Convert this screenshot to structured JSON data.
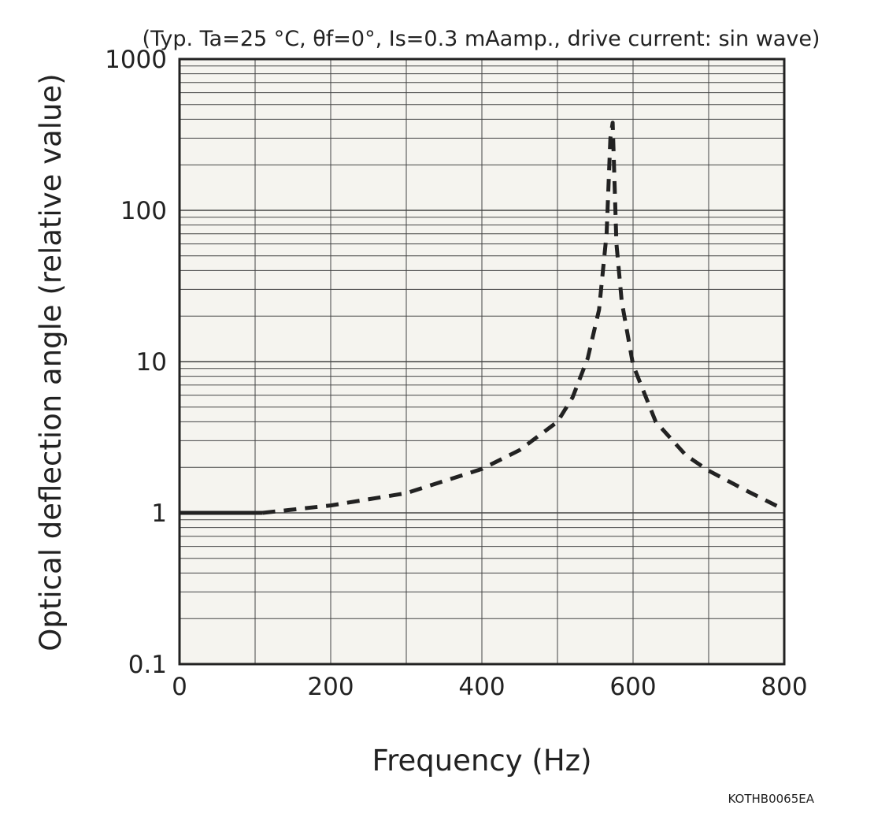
{
  "chart_data": {
    "type": "line",
    "title": "",
    "subtitle": "(Typ. Ta=25 °C, θf=0°, Is=0.3 mAamp., drive current: sin wave)",
    "xlabel": "Frequency (Hz)",
    "ylabel": "Optical deflection angle (relative value)",
    "xlim": [
      0,
      800
    ],
    "ylim": [
      0.1,
      1000
    ],
    "yscale": "log",
    "grid": true,
    "x_ticks": [
      {
        "value": 0,
        "label": "0"
      },
      {
        "value": 200,
        "label": "200"
      },
      {
        "value": 400,
        "label": "400"
      },
      {
        "value": 600,
        "label": "600"
      },
      {
        "value": 800,
        "label": "800"
      }
    ],
    "y_ticks": [
      {
        "value": 0.1,
        "label": "0.1"
      },
      {
        "value": 1,
        "label": "1"
      },
      {
        "value": 10,
        "label": "10"
      },
      {
        "value": 100,
        "label": "100"
      },
      {
        "value": 1000,
        "label": "1000"
      }
    ],
    "series": [
      {
        "line_style": "solid",
        "color": "#222222",
        "x": [
          0,
          110
        ],
        "y": [
          1.0,
          1.0
        ]
      },
      {
        "line_style": "dashed",
        "color": "#222222",
        "x": [
          110,
          200,
          300,
          400,
          450,
          500,
          520,
          540,
          555,
          565,
          570,
          573,
          578,
          585,
          600,
          630,
          670,
          700,
          750,
          800
        ],
        "y": [
          1.0,
          1.12,
          1.35,
          1.95,
          2.6,
          4.0,
          5.8,
          10.5,
          22,
          70,
          300,
          380,
          60,
          25,
          9.5,
          4.0,
          2.4,
          1.9,
          1.4,
          1.05
        ]
      }
    ]
  },
  "figure_code": "KOTHB0065EA",
  "colors": {
    "plot_background": "#f5f4ef",
    "line": "#222222",
    "grid": "#444444"
  }
}
